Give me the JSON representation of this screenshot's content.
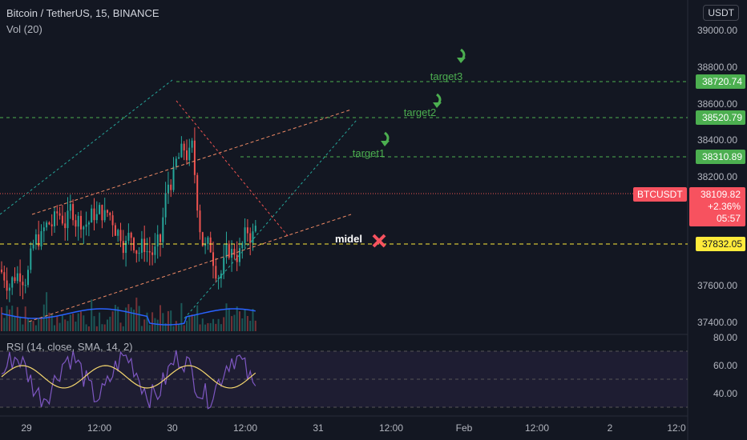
{
  "header": {
    "title": "Bitcoin / TetherUS, 15, BINANCE",
    "volume_label": "Vol (20)",
    "currency_button": "USDT"
  },
  "price_axis": {
    "ticks": [
      "39000.00",
      "38800.00",
      "38600.00",
      "38400.00",
      "38200.00",
      "37600.00",
      "37400.00"
    ]
  },
  "rsi_panel": {
    "label": "RSI (14, close, SMA, 14, 2)",
    "ticks": [
      "80.00",
      "60.00",
      "40.00"
    ]
  },
  "time_axis": {
    "ticks": [
      "29",
      "12:00",
      "30",
      "12:00",
      "31",
      "12:00",
      "Feb",
      "12:00",
      "2",
      "12:0"
    ]
  },
  "price_tags": {
    "target3_price": "38720.74",
    "target2_price": "38520.79",
    "target1_price": "38310.89",
    "midel_price": "37832.05"
  },
  "current_price": {
    "symbol": "BTCUSDT",
    "price": "38109.82",
    "change": "+2.36%",
    "countdown": "05:57"
  },
  "annotations": {
    "target3": "target3",
    "target2": "target2",
    "target1": "target1",
    "midel": "midel"
  },
  "colors": {
    "background": "#131722",
    "up": "#26a69a",
    "down": "#ef5350",
    "target_green": "#4caf50",
    "midel_yellow": "#ffeb3b",
    "current_red": "#f7525f",
    "rsi_line": "#7e57c2",
    "rsi_ma": "#f5d76e",
    "volume_ma": "#2962ff"
  },
  "icons": {
    "target_arrow": "curved-down-arrow-icon",
    "midel_marker": "red-x-icon"
  }
}
